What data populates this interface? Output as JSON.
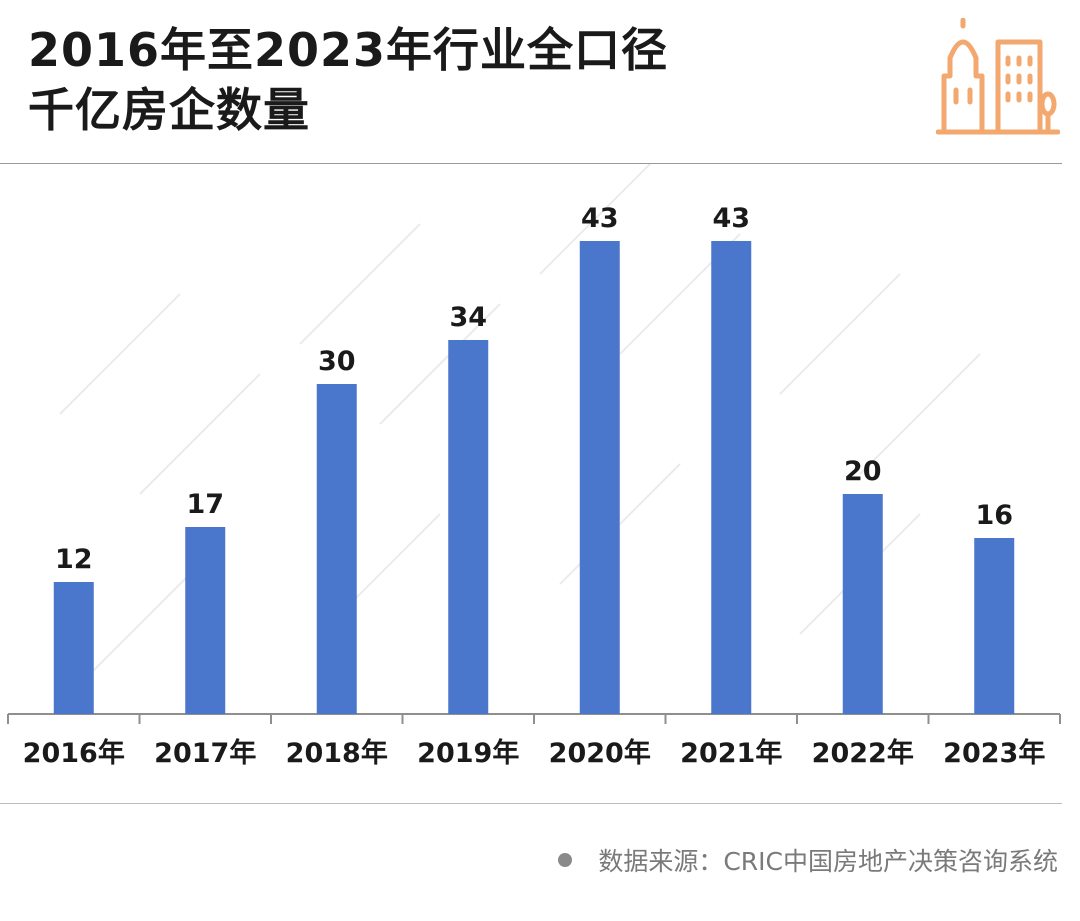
{
  "header": {
    "title_line1": "2016年至2023年行业全口径",
    "title_line2": "千亿房企数量",
    "logo_icon": "buildings-icon",
    "logo_color": "#F2A86F"
  },
  "chart_data": {
    "type": "bar",
    "title": "2016年至2023年行业全口径千亿房企数量",
    "categories": [
      "2016年",
      "2017年",
      "2018年",
      "2019年",
      "2020年",
      "2021年",
      "2022年",
      "2023年"
    ],
    "values": [
      12,
      17,
      30,
      34,
      43,
      43,
      20,
      16
    ],
    "xlabel": "",
    "ylabel": "",
    "ylim": [
      0,
      43
    ],
    "grid": false,
    "legend": "none",
    "bar_color": "#4A76CB"
  },
  "footer": {
    "source": "数据来源：CRIC中国房地产决策咨询系统"
  }
}
